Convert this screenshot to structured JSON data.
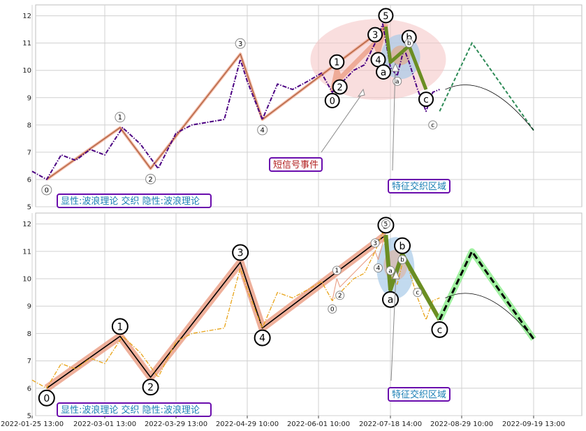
{
  "chart_data": [
    {
      "type": "line",
      "panel": "top",
      "title": "",
      "ylim": [
        5,
        12.4
      ],
      "yticks": [
        "5",
        "6",
        "7",
        "8",
        "9",
        "10",
        "11",
        "12"
      ],
      "grid": true,
      "price_color": "#4b0082",
      "series": [
        {
          "kind": "price",
          "x": [
            "2022-01-25",
            "2022-02-01",
            "2022-02-08",
            "2022-02-15",
            "2022-02-22",
            "2022-03-01",
            "2022-03-08",
            "2022-03-15",
            "2022-03-22",
            "2022-03-29",
            "2022-04-05",
            "2022-04-12",
            "2022-04-19",
            "2022-04-26",
            "2022-04-29",
            "2022-05-06",
            "2022-05-13",
            "2022-05-20",
            "2022-05-27",
            "2022-06-03",
            "2022-06-10",
            "2022-06-17",
            "2022-06-24",
            "2022-07-01",
            "2022-07-08",
            "2022-07-13",
            "2022-07-18",
            "2022-07-22",
            "2022-07-26",
            "2022-07-29",
            "2022-08-03",
            "2022-08-08",
            "2022-08-12",
            "2022-08-16"
          ],
          "y": [
            6.3,
            6.0,
            6.9,
            6.7,
            7.1,
            6.9,
            7.9,
            7.3,
            6.4,
            7.7,
            8.0,
            8.1,
            8.2,
            10.4,
            9.6,
            8.2,
            9.5,
            9.3,
            9.6,
            9.9,
            9.2,
            9.6,
            10.0,
            10.2,
            11.0,
            11.7,
            10.1,
            9.8,
            10.8,
            10.3,
            9.3,
            8.5,
            9.2,
            9.3
          ]
        }
      ],
      "wave_points": [
        {
          "label": "0",
          "x": "2022-02-01",
          "y": 6.0
        },
        {
          "label": "1",
          "x": "2022-03-07",
          "y": 7.9
        },
        {
          "label": "2",
          "x": "2022-03-19",
          "y": 6.4
        },
        {
          "label": "3",
          "x": "2022-04-26",
          "y": 10.6
        },
        {
          "label": "4",
          "x": "2022-05-06",
          "y": 8.2
        },
        {
          "label": "5",
          "x": "2022-07-15",
          "y": 11.6
        }
      ],
      "small_wave_points": [
        {
          "label": "0",
          "x": "2022-06-10",
          "y": 9.2
        },
        {
          "label": "1",
          "x": "2022-06-13",
          "y": 10.0
        },
        {
          "label": "2",
          "x": "2022-06-15",
          "y": 9.7
        },
        {
          "label": "3",
          "x": "2022-07-08",
          "y": 11.0
        },
        {
          "label": "4",
          "x": "2022-07-10",
          "y": 10.7
        },
        {
          "label": "5",
          "x": "2022-07-15",
          "y": 11.7
        }
      ],
      "abc_points": [
        {
          "label": "a",
          "x": "2022-07-18",
          "y": 10.3
        },
        {
          "label": "b",
          "x": "2022-07-29",
          "y": 10.9
        },
        {
          "label": "c",
          "x": "2022-08-08",
          "y": 9.3
        }
      ],
      "small_abc_labels": [
        {
          "label": "a",
          "x": "2022-07-22",
          "y": 9.6
        },
        {
          "label": "b",
          "x": "2022-07-29",
          "y": 11.0
        },
        {
          "label": "c",
          "x": "2022-08-12",
          "y": 8.0
        }
      ],
      "forecast": {
        "x": [
          "2022-08-16",
          "2022-09-01",
          "2022-09-19"
        ],
        "y": [
          8.5,
          11.0,
          7.8
        ]
      },
      "annotations": {
        "signal": "短信号事件",
        "zone": "特征交织区域",
        "legend": "显性:波浪理论 交织 隐性:波浪理论"
      }
    },
    {
      "type": "line",
      "panel": "bottom",
      "title": "",
      "ylim": [
        5,
        12.4
      ],
      "yticks": [
        "5",
        "6",
        "7",
        "8",
        "9",
        "10",
        "11",
        "12"
      ],
      "grid": true,
      "price_color": "#e8a317",
      "series": [
        {
          "kind": "price",
          "x": [
            "2022-01-25",
            "2022-02-01",
            "2022-02-08",
            "2022-02-15",
            "2022-02-22",
            "2022-03-01",
            "2022-03-08",
            "2022-03-15",
            "2022-03-22",
            "2022-03-29",
            "2022-04-05",
            "2022-04-12",
            "2022-04-19",
            "2022-04-26",
            "2022-04-29",
            "2022-05-06",
            "2022-05-13",
            "2022-05-20",
            "2022-05-27",
            "2022-06-03",
            "2022-06-10",
            "2022-06-17",
            "2022-06-24",
            "2022-07-01",
            "2022-07-08",
            "2022-07-13",
            "2022-07-18",
            "2022-07-22",
            "2022-07-26",
            "2022-07-29",
            "2022-08-03",
            "2022-08-08",
            "2022-08-12",
            "2022-08-16"
          ],
          "y": [
            6.3,
            6.0,
            6.9,
            6.7,
            7.1,
            6.9,
            7.9,
            7.3,
            6.4,
            7.7,
            8.0,
            8.1,
            8.2,
            10.4,
            9.6,
            8.2,
            9.5,
            9.3,
            9.6,
            9.9,
            9.2,
            9.6,
            10.0,
            10.2,
            11.0,
            11.7,
            10.1,
            9.8,
            10.8,
            10.3,
            9.3,
            8.5,
            9.2,
            9.3
          ]
        }
      ],
      "wave_points": [
        {
          "label": "0",
          "x": "2022-02-01",
          "y": 6.0
        },
        {
          "label": "1",
          "x": "2022-03-07",
          "y": 7.9
        },
        {
          "label": "2",
          "x": "2022-03-19",
          "y": 6.4
        },
        {
          "label": "3",
          "x": "2022-04-26",
          "y": 10.6
        },
        {
          "label": "4",
          "x": "2022-05-06",
          "y": 8.2
        },
        {
          "label": "5",
          "x": "2022-07-15",
          "y": 11.6
        }
      ],
      "small_wave_points": [
        {
          "label": "0",
          "x": "2022-06-10",
          "y": 9.2
        },
        {
          "label": "1",
          "x": "2022-06-13",
          "y": 10.0
        },
        {
          "label": "2",
          "x": "2022-06-15",
          "y": 9.7
        },
        {
          "label": "3",
          "x": "2022-07-08",
          "y": 11.0
        },
        {
          "label": "4",
          "x": "2022-07-10",
          "y": 10.7
        },
        {
          "label": "5",
          "x": "2022-07-15",
          "y": 11.7
        }
      ],
      "abc_points": [
        {
          "label": "a",
          "x": "2022-07-18",
          "y": 9.6
        },
        {
          "label": "b",
          "x": "2022-07-25",
          "y": 10.9
        },
        {
          "label": "c",
          "x": "2022-08-16",
          "y": 8.5
        }
      ],
      "small_abc_labels": [
        {
          "label": "a",
          "x": "2022-07-18",
          "y": 10.3
        },
        {
          "label": "b",
          "x": "2022-07-25",
          "y": 10.7
        },
        {
          "label": "c",
          "x": "2022-08-03",
          "y": 9.5
        }
      ],
      "forecast": {
        "x": [
          "2022-08-16",
          "2022-09-01",
          "2022-09-19"
        ],
        "y": [
          8.5,
          11.0,
          7.8
        ]
      },
      "annotations": {
        "zone": "特征交织区域",
        "legend": "显性:波浪理论 交织 隐性:波浪理论"
      }
    }
  ],
  "x_axis": {
    "tick_labels": [
      "2022-01-25 13:00",
      "2022-03-01 13:00",
      "2022-03-29 13:00",
      "2022-04-29 10:00",
      "2022-06-01 10:00",
      "2022-07-18 14:00",
      "2022-08-29 10:00",
      "2022-09-19 13:00"
    ],
    "tick_dates": [
      "2022-01-25",
      "2022-03-01",
      "2022-03-29",
      "2022-04-29",
      "2022-06-01",
      "2022-07-18",
      "2022-08-29",
      "2022-09-19"
    ]
  },
  "colors": {
    "accent_box": "#6a0dad",
    "label_text": "#1a7fb5",
    "signal_text": "#b22222",
    "signal_box": "#6a0dad",
    "wave_line": "#e9967a",
    "abc_line": "#6b8e23",
    "forecast": "#90ee90"
  }
}
